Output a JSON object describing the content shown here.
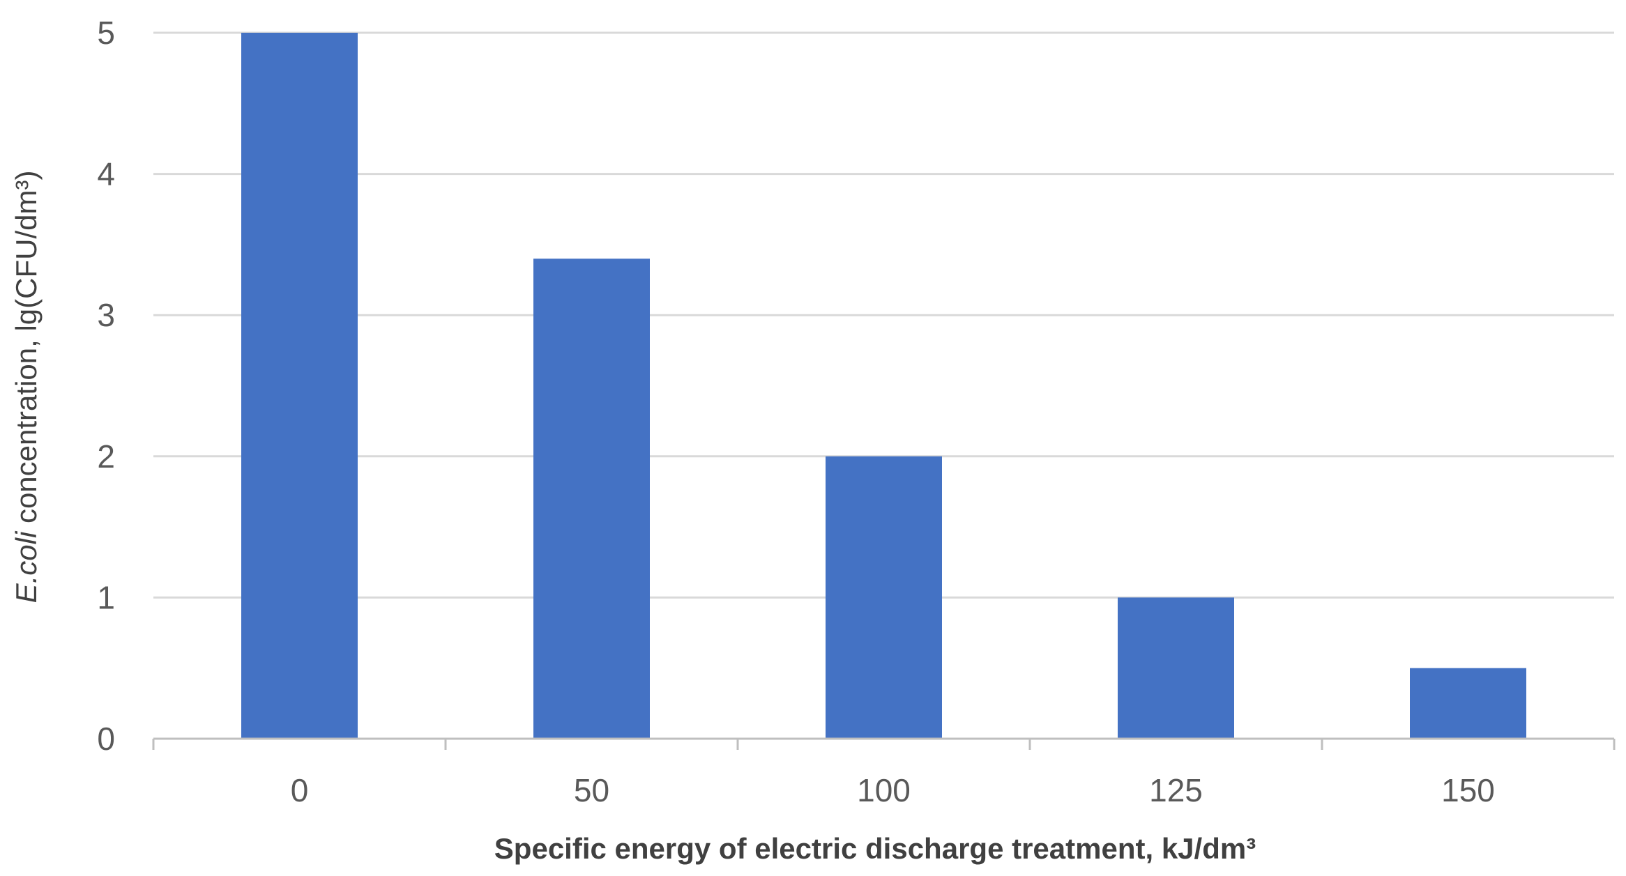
{
  "chart_data": {
    "type": "bar",
    "title": "",
    "categories": [
      "0",
      "50",
      "100",
      "125",
      "150"
    ],
    "values": [
      5,
      3.4,
      2,
      1,
      0.5
    ],
    "ylim": [
      0,
      5
    ],
    "yticks": [
      "0",
      "1",
      "2",
      "3",
      "4",
      "5"
    ],
    "xlabel": "Specific energy of electric discharge treatment, kJ/dm³",
    "ylabel": {
      "italic_part": "E.coli",
      "rest": " concentration, lg(CFU/dm³)"
    },
    "grid": true,
    "legend": "none",
    "colors": {
      "bar": "#4472c4",
      "grid": "#d9d9d9",
      "axis": "#bfbfbf",
      "tick_text": "#595959",
      "title_text": "#404040"
    }
  }
}
